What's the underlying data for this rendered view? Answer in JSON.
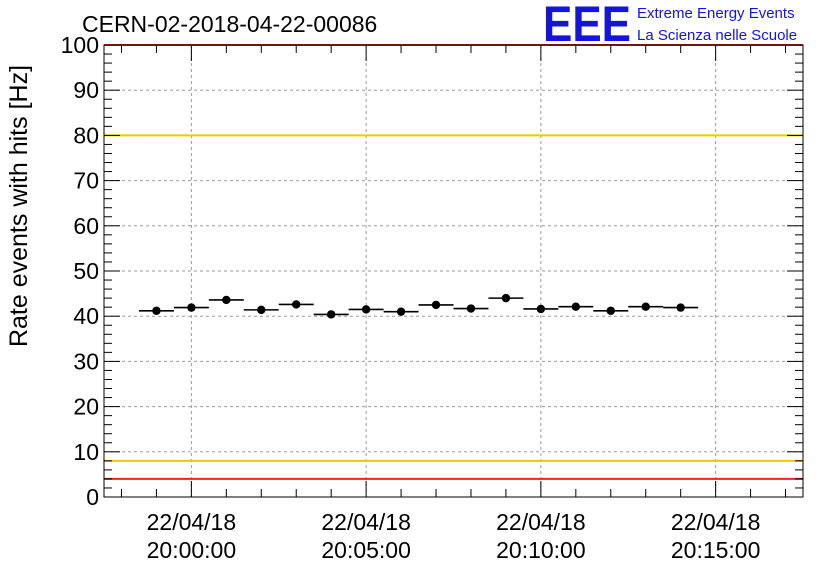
{
  "header": {
    "run_title": "CERN-02-2018-04-22-00086"
  },
  "logo": {
    "mark": "EEE",
    "line1": "Extreme Energy Events",
    "line2": "La Scienza nelle Scuole",
    "color": "#1414dc"
  },
  "chart_data": {
    "type": "scatter",
    "title": "CERN-02-2018-04-22-00086",
    "xlabel": "",
    "ylabel": "Rate events with hits [Hz]",
    "ylim": [
      0,
      100
    ],
    "xlim_minutes": [
      -2.5,
      17.5
    ],
    "yticks": [
      0,
      10,
      20,
      30,
      40,
      50,
      60,
      70,
      80,
      90,
      100
    ],
    "xticks": [
      {
        "minute": 0,
        "date": "22/04/18",
        "time": "20:00:00"
      },
      {
        "minute": 5,
        "date": "22/04/18",
        "time": "20:05:00"
      },
      {
        "minute": 10,
        "date": "22/04/18",
        "time": "20:10:00"
      },
      {
        "minute": 15,
        "date": "22/04/18",
        "time": "20:15:00"
      }
    ],
    "grid": true,
    "bin_width_minutes": 1,
    "points": [
      {
        "x_minute": -1,
        "y": 41.2
      },
      {
        "x_minute": 0,
        "y": 41.9
      },
      {
        "x_minute": 1,
        "y": 43.6
      },
      {
        "x_minute": 2,
        "y": 41.4
      },
      {
        "x_minute": 3,
        "y": 42.6
      },
      {
        "x_minute": 4,
        "y": 40.4
      },
      {
        "x_minute": 5,
        "y": 41.5
      },
      {
        "x_minute": 6,
        "y": 41.0
      },
      {
        "x_minute": 7,
        "y": 42.5
      },
      {
        "x_minute": 8,
        "y": 41.7
      },
      {
        "x_minute": 9,
        "y": 44.0
      },
      {
        "x_minute": 10,
        "y": 41.6
      },
      {
        "x_minute": 11,
        "y": 42.1
      },
      {
        "x_minute": 12,
        "y": 41.2
      },
      {
        "x_minute": 13,
        "y": 42.1
      },
      {
        "x_minute": 14,
        "y": 41.9
      }
    ],
    "reference_lines": [
      {
        "y": 100,
        "color": "#e8261e"
      },
      {
        "y": 80,
        "color": "#f0c800"
      },
      {
        "y": 8,
        "color": "#f0c800"
      },
      {
        "y": 4,
        "color": "#e8261e"
      }
    ]
  }
}
